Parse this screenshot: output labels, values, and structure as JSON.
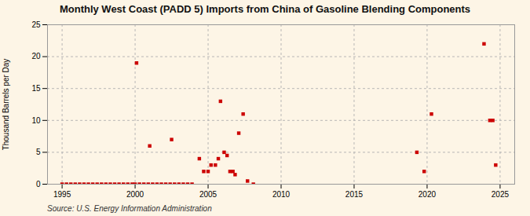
{
  "chart_data": {
    "type": "scatter",
    "title": "Monthly West Coast (PADD 5) Imports from China of Gasoline Blending Components",
    "ylabel": "Thousand Barrels per Day",
    "annotation": "Source: U.S. Energy Information Administration",
    "color": "#cc0000",
    "marker": "square",
    "grid": true,
    "xlim": [
      1994,
      2026
    ],
    "ylim": [
      0,
      25
    ],
    "xticks": [
      1995,
      2000,
      2005,
      2010,
      2015,
      2020,
      2025
    ],
    "yticks": [
      0,
      5,
      10,
      15,
      20,
      25
    ],
    "x": [
      1995.0,
      1995.3,
      1995.6,
      1995.9,
      1996.2,
      1996.5,
      1996.8,
      1997.1,
      1997.4,
      1997.7,
      1998.0,
      1998.3,
      1998.6,
      1998.9,
      1999.2,
      1999.5,
      1999.8,
      2000.0,
      2000.3,
      2000.6,
      2000.9,
      2001.2,
      2001.5,
      2001.8,
      2002.1,
      2002.4,
      2002.7,
      2003.0,
      2003.3,
      2003.6,
      2003.9,
      2000.1,
      2001.0,
      2002.5,
      2004.4,
      2004.7,
      2005.0,
      2005.2,
      2005.5,
      2005.7,
      2005.85,
      2006.1,
      2006.3,
      2006.5,
      2006.7,
      2006.85,
      2007.1,
      2007.4,
      2007.7,
      2008.1,
      2019.3,
      2019.8,
      2020.3,
      2023.9,
      2024.3,
      2024.5,
      2024.7
    ],
    "values": [
      0.0,
      0.0,
      0.0,
      0.0,
      0.0,
      0.0,
      0.0,
      0.0,
      0.0,
      0.0,
      0.0,
      0.0,
      0.0,
      0.0,
      0.0,
      0.0,
      0.0,
      0.0,
      0.0,
      0.0,
      0.0,
      0.0,
      0.0,
      0.0,
      0.0,
      0.0,
      0.0,
      0.0,
      0.0,
      0.0,
      0.0,
      19.0,
      6.0,
      7.0,
      4.0,
      2.0,
      2.0,
      3.0,
      3.0,
      4.0,
      13.0,
      5.0,
      4.5,
      2.0,
      2.0,
      1.5,
      8.0,
      11.0,
      0.5,
      0.0,
      5.0,
      2.0,
      11.0,
      22.0,
      10.0,
      10.0,
      3.0
    ]
  }
}
